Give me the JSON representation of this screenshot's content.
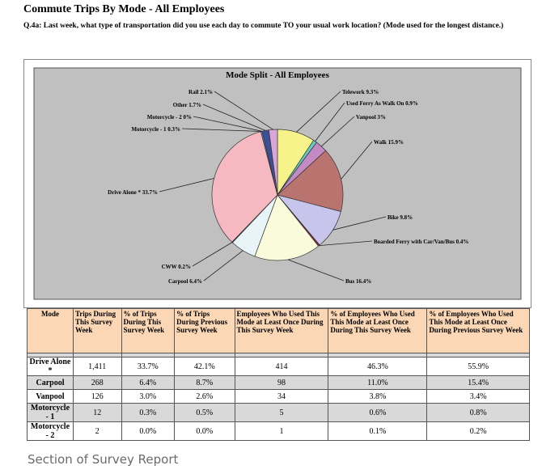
{
  "report": {
    "title": "Commute Trips By Mode - All Employees",
    "question": "Q.4a: Last week, what type of transportation did you use each day to commute TO your usual work location? (Mode used for the longest distance.)",
    "caption": "Section of Survey Report"
  },
  "chart_data": {
    "type": "pie",
    "title": "Mode Split - All Employees",
    "slices": [
      {
        "label": "Telework 9.3%",
        "value": 9.3,
        "color": "#f6f38b"
      },
      {
        "label": "Used Ferry As Walk On 0.9%",
        "value": 0.9,
        "color": "#63cfc3"
      },
      {
        "label": "Vanpool 3%",
        "value": 3.0,
        "color": "#c48ac4"
      },
      {
        "label": "Walk 15.9%",
        "value": 15.9,
        "color": "#b97470"
      },
      {
        "label": "Bike 9.8%",
        "value": 9.8,
        "color": "#c7c5ec"
      },
      {
        "label": "Boarded Ferry with Car/Van/Bus 0.4%",
        "value": 0.4,
        "color": "#8a2a3e"
      },
      {
        "label": "Bus 16.4%",
        "value": 16.4,
        "color": "#fafbdb"
      },
      {
        "label": "Carpool 6.4%",
        "value": 6.4,
        "color": "#e8f4f8"
      },
      {
        "label": "CWW 0.2%",
        "value": 0.2,
        "color": "#3a3a9a"
      },
      {
        "label": "Drive Alone * 33.7%",
        "value": 33.7,
        "color": "#f6b9c2"
      },
      {
        "label": "Motorcycle - 1 0.3%",
        "value": 0.3,
        "color": "#5b9bd5"
      },
      {
        "label": "Motorcycle - 2 0%",
        "value": 0.0,
        "color": "#444444"
      },
      {
        "label": "Other 1.7%",
        "value": 1.7,
        "color": "#3d4f96"
      },
      {
        "label": "Rail 2.1%",
        "value": 2.1,
        "color": "#d8a6d8"
      }
    ]
  },
  "table": {
    "headers": [
      "Mode",
      "Trips During This Survey Week",
      "% of Trips During This Survey Week",
      "% of Trips During Previous Survey Week",
      "Employees Who Used This Mode at Least Once During This Survey Week",
      "% of Employees Who Used This Mode at Least Once During This Survey Week",
      "% of Employees Who Used This Mode at Least Once During Previous Survey Week"
    ],
    "rows": [
      [
        "Drive Alone *",
        "1,411",
        "33.7%",
        "42.1%",
        "414",
        "46.3%",
        "55.9%"
      ],
      [
        "Carpool",
        "268",
        "6.4%",
        "8.7%",
        "98",
        "11.0%",
        "15.4%"
      ],
      [
        "Vanpool",
        "126",
        "3.0%",
        "2.6%",
        "34",
        "3.8%",
        "3.4%"
      ],
      [
        "Motorcycle - 1",
        "12",
        "0.3%",
        "0.5%",
        "5",
        "0.6%",
        "0.8%"
      ],
      [
        "Motorcycle - 2",
        "2",
        "0.0%",
        "0.0%",
        "1",
        "0.1%",
        "0.2%"
      ]
    ]
  }
}
